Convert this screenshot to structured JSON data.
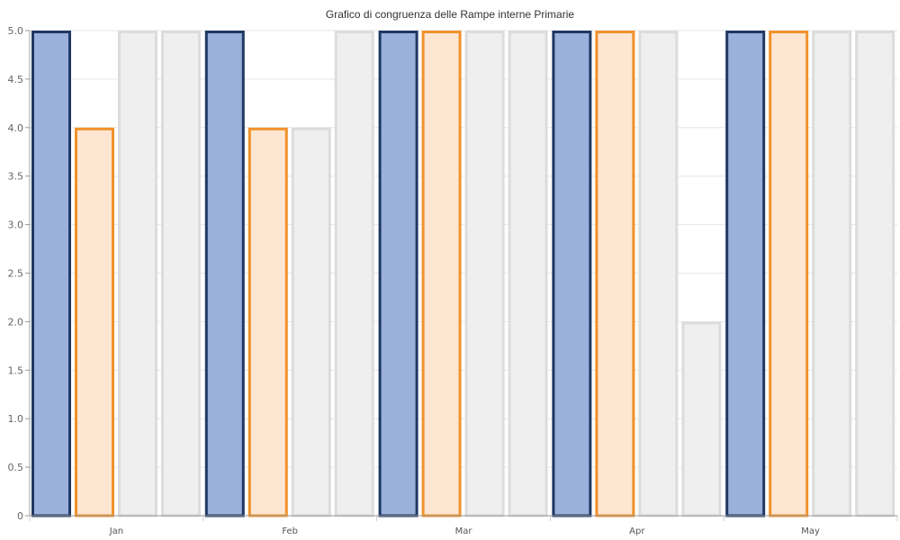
{
  "chart_data": {
    "type": "bar",
    "title": "Grafico di congruenza delle Rampe interne Primarie",
    "categories": [
      "Jan",
      "Feb",
      "Mar",
      "Apr",
      "May"
    ],
    "ylim": [
      0,
      5
    ],
    "yticks": [
      "0",
      "0.5",
      "1.0",
      "1.5",
      "2.0",
      "2.5",
      "3.0",
      "3.5",
      "4.0",
      "4.5",
      "5.0"
    ],
    "grid": true,
    "series": [
      {
        "values": [
          5,
          5,
          5,
          5,
          5
        ],
        "fill": "#9bb0da",
        "stroke": "#1f3864"
      },
      {
        "values": [
          4,
          4,
          5,
          5,
          5
        ],
        "fill": "#fde6d2",
        "stroke": "#f0922b"
      },
      {
        "values": [
          5,
          4,
          5,
          5,
          5
        ],
        "fill": "#efefef",
        "stroke": "#dcdcdc"
      },
      {
        "values": [
          5,
          5,
          5,
          2,
          5
        ],
        "fill": "#efefef",
        "stroke": "#dcdcdc"
      }
    ]
  }
}
